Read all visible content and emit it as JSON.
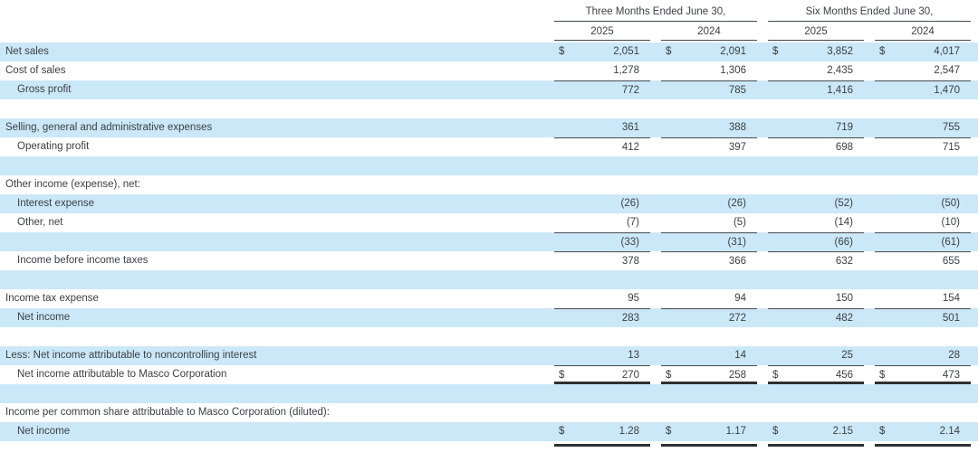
{
  "currency_symbol": "$",
  "colors": {
    "row_highlight": "#cbe8f9",
    "text": "#3c4043",
    "rule_thin": "#46494c",
    "rule_thick": "#2e3133"
  },
  "table": {
    "period_headers": [
      {
        "label": "Three Months Ended June 30,",
        "years": [
          "2025",
          "2024"
        ]
      },
      {
        "label": "Six Months Ended June 30,",
        "years": [
          "2025",
          "2024"
        ]
      }
    ],
    "rows": [
      {
        "label": "Net sales",
        "indent": 0,
        "shade": true,
        "dollar": true,
        "values": [
          "2,051",
          "2,091",
          "3,852",
          "4,017"
        ]
      },
      {
        "label": "Cost of sales",
        "indent": 0,
        "shade": false,
        "values": [
          "1,278",
          "1,306",
          "2,435",
          "2,547"
        ]
      },
      {
        "label": "Gross profit",
        "indent": 1,
        "shade": true,
        "top_border": true,
        "values": [
          "772",
          "785",
          "1,416",
          "1,470"
        ]
      },
      {
        "label": "",
        "blank": true,
        "shade": false
      },
      {
        "label": "Selling, general and administrative expenses",
        "indent": 0,
        "shade": true,
        "values": [
          "361",
          "388",
          "719",
          "755"
        ]
      },
      {
        "label": "Operating profit",
        "indent": 1,
        "shade": false,
        "top_border": true,
        "values": [
          "412",
          "397",
          "698",
          "715"
        ]
      },
      {
        "label": "",
        "blank": true,
        "shade": true
      },
      {
        "label": "Other income (expense), net:",
        "indent": 0,
        "shade": false
      },
      {
        "label": "Interest expense",
        "indent": 1,
        "shade": true,
        "values": [
          "(26)",
          "(26)",
          "(52)",
          "(50)"
        ]
      },
      {
        "label": "Other, net",
        "indent": 1,
        "shade": false,
        "values": [
          "(7)",
          "(5)",
          "(14)",
          "(10)"
        ]
      },
      {
        "label": "",
        "indent": 0,
        "shade": true,
        "top_border": true,
        "values": [
          "(33)",
          "(31)",
          "(66)",
          "(61)"
        ]
      },
      {
        "label": "Income before income taxes",
        "indent": 1,
        "shade": false,
        "top_border": true,
        "values": [
          "378",
          "366",
          "632",
          "655"
        ]
      },
      {
        "label": "",
        "blank": true,
        "shade": true
      },
      {
        "label": "Income tax expense",
        "indent": 0,
        "shade": false,
        "values": [
          "95",
          "94",
          "150",
          "154"
        ]
      },
      {
        "label": "Net income",
        "indent": 1,
        "shade": true,
        "top_border": true,
        "values": [
          "283",
          "272",
          "482",
          "501"
        ]
      },
      {
        "label": "",
        "blank": true,
        "shade": false
      },
      {
        "label": "Less: Net income attributable to noncontrolling interest",
        "indent": 0,
        "shade": true,
        "values": [
          "13",
          "14",
          "25",
          "28"
        ]
      },
      {
        "label": "Net income attributable to Masco Corporation",
        "indent": 1,
        "shade": false,
        "dollar": true,
        "top_border": true,
        "bottom_border": true,
        "values": [
          "270",
          "258",
          "456",
          "473"
        ]
      },
      {
        "label": "",
        "blank": true,
        "shade": true
      },
      {
        "label": "Income per common share attributable to Masco Corporation (diluted):",
        "indent": 0,
        "shade": false
      },
      {
        "label": "Net income",
        "indent": 1,
        "shade": true,
        "dollar": true,
        "bottom_rule_detached": true,
        "values": [
          "1.28",
          "1.17",
          "2.15",
          "2.14"
        ]
      }
    ]
  }
}
